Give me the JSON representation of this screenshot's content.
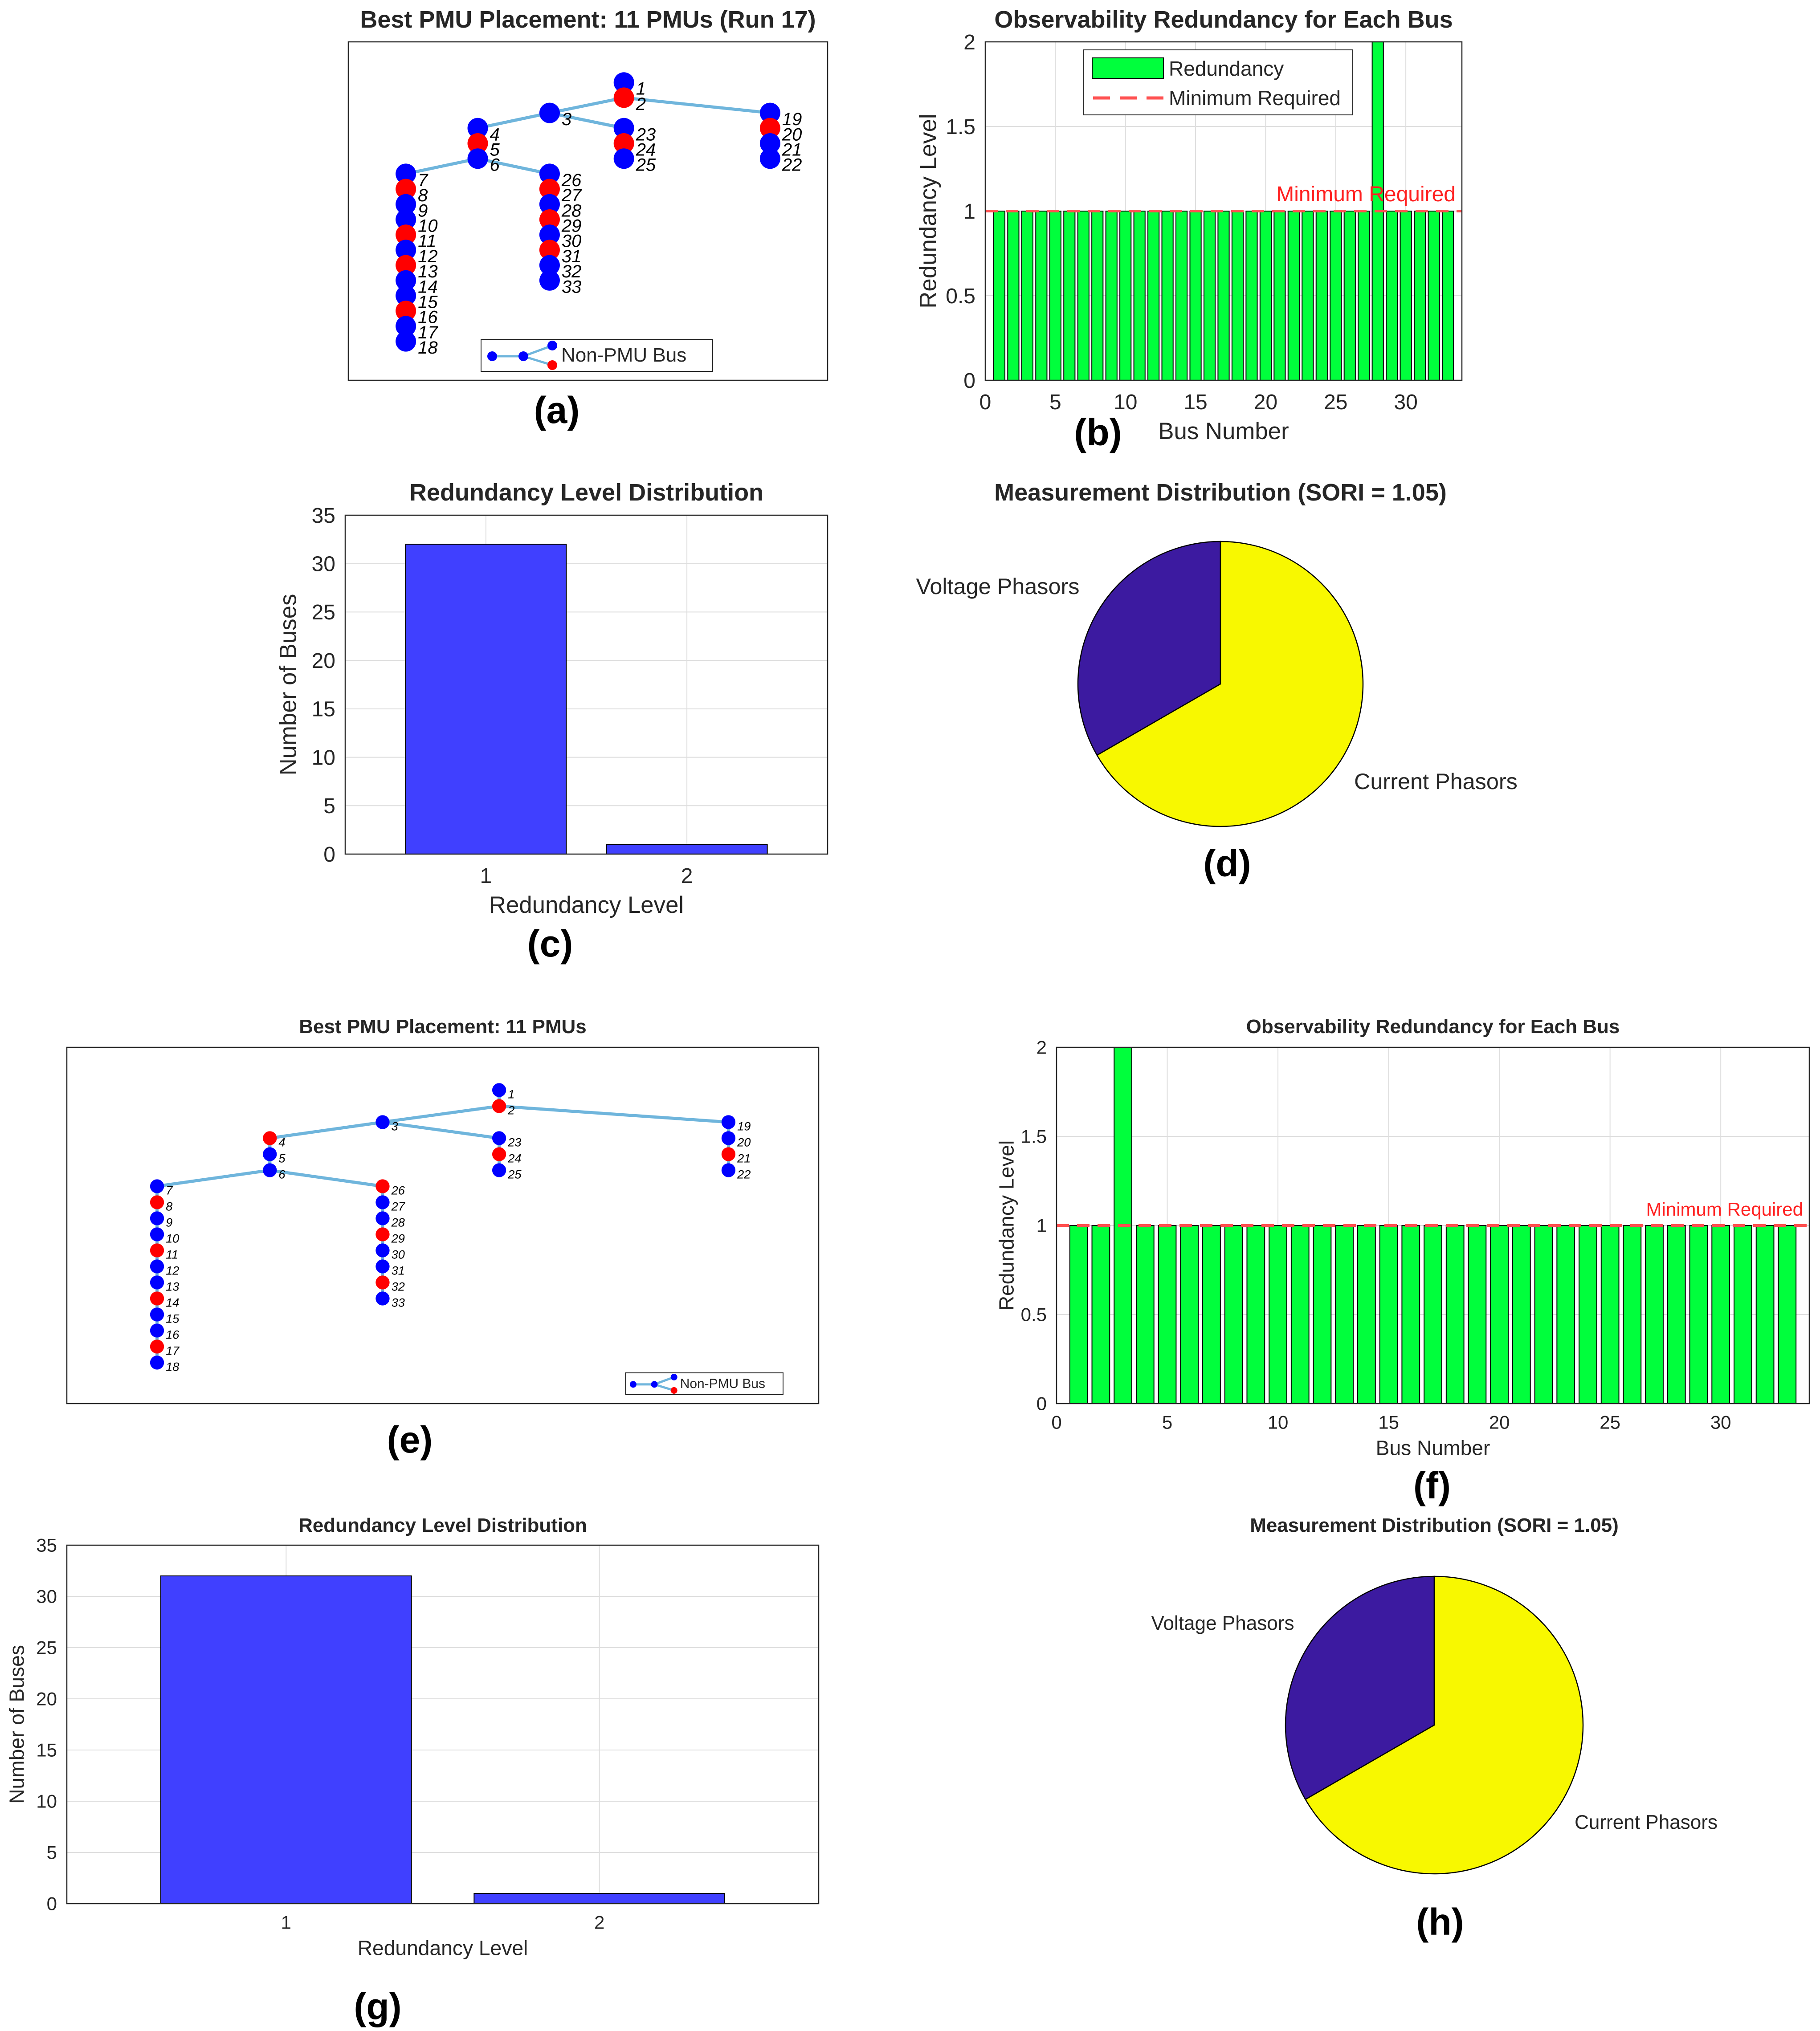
{
  "colors": {
    "pmu_bus": "#ff0000",
    "non_pmu_bus": "#0000ff",
    "line": "#6fb5dc",
    "green_bar": "#00ff3c",
    "blue_bar": "#4040ff",
    "min_line": "#ff5050",
    "pie_voltage": "#3c1aa0",
    "pie_current": "#f8f800"
  },
  "panels": [
    {
      "id": "a",
      "label": "(a)",
      "chart_data": {
        "type": "network",
        "title": "Best PMU Placement: 11 PMUs (Run 17)",
        "legend": {
          "entry": "Non-PMU Bus",
          "placement": "bottom"
        },
        "pmu_buses": [
          2,
          5,
          8,
          11,
          13,
          16,
          24,
          27,
          29,
          31,
          20
        ],
        "buses": [
          1,
          2,
          3,
          4,
          5,
          6,
          7,
          8,
          9,
          10,
          11,
          12,
          13,
          14,
          15,
          16,
          17,
          18,
          19,
          20,
          21,
          22,
          23,
          24,
          25,
          26,
          27,
          28,
          29,
          30,
          31,
          32,
          33
        ],
        "bus_labels": [
          "1",
          "2",
          "3",
          "4",
          "5",
          "6",
          "7",
          "8",
          "9",
          "10",
          "11",
          "12",
          "13",
          "14",
          "15",
          "16",
          "17",
          "18",
          "19",
          "20",
          "21",
          "22",
          "23",
          "24",
          "25",
          "26",
          "27",
          "28",
          "29",
          "30",
          "31",
          "32",
          "33"
        ]
      }
    },
    {
      "id": "b",
      "label": "(b)",
      "chart_data": {
        "type": "bar",
        "title": "Observability Redundancy for Each Bus",
        "xlabel": "Bus Number",
        "ylabel": "Redundancy Level",
        "x": [
          1,
          2,
          3,
          4,
          5,
          6,
          7,
          8,
          9,
          10,
          11,
          12,
          13,
          14,
          15,
          16,
          17,
          18,
          19,
          20,
          21,
          22,
          23,
          24,
          25,
          26,
          27,
          28,
          29,
          30,
          31,
          32,
          33
        ],
        "values": [
          1,
          1,
          1,
          1,
          1,
          1,
          1,
          1,
          1,
          1,
          1,
          1,
          1,
          1,
          1,
          1,
          1,
          1,
          1,
          1,
          1,
          1,
          1,
          1,
          1,
          1,
          1,
          2,
          1,
          1,
          1,
          1,
          1
        ],
        "xlim": [
          0,
          34
        ],
        "ylim": [
          0,
          2
        ],
        "xticks": [
          "0",
          "5",
          "10",
          "15",
          "20",
          "25",
          "30"
        ],
        "yticks": [
          "0",
          "0.5",
          "1",
          "1.5",
          "2"
        ],
        "xtick_values": [
          0,
          5,
          10,
          15,
          20,
          25,
          30
        ],
        "ytick_values": [
          0,
          0.5,
          1,
          1.5,
          2
        ],
        "min_required": 1,
        "min_label": "Minimum Required",
        "legend": {
          "entries": [
            "Redundancy",
            "Minimum Required"
          ],
          "placement": "top"
        },
        "grid": true
      }
    },
    {
      "id": "c",
      "label": "(c)",
      "chart_data": {
        "type": "bar",
        "title": "Redundancy Level Distribution",
        "xlabel": "Redundancy Level",
        "ylabel": "Number of Buses",
        "categories": [
          "1",
          "2"
        ],
        "values": [
          32,
          1
        ],
        "ylim": [
          0,
          35
        ],
        "yticks": [
          "0",
          "5",
          "10",
          "15",
          "20",
          "25",
          "30",
          "35"
        ],
        "ytick_values": [
          0,
          5,
          10,
          15,
          20,
          25,
          30,
          35
        ],
        "grid": true
      }
    },
    {
      "id": "d",
      "label": "(d)",
      "chart_data": {
        "type": "pie",
        "title": "Measurement Distribution (SORI = 1.05)",
        "labels": [
          "Voltage Phasors",
          "Current Phasors"
        ],
        "values": [
          11,
          22
        ]
      }
    },
    {
      "id": "e",
      "label": "(e)",
      "chart_data": {
        "type": "network",
        "title": "Best PMU Placement: 11 PMUs",
        "legend": {
          "entry": "Non-PMU Bus",
          "placement": "bottom-right"
        },
        "pmu_buses": [
          2,
          4,
          8,
          11,
          14,
          17,
          24,
          26,
          29,
          32,
          21
        ],
        "buses": [
          1,
          2,
          3,
          4,
          5,
          6,
          7,
          8,
          9,
          10,
          11,
          12,
          13,
          14,
          15,
          16,
          17,
          18,
          19,
          20,
          21,
          22,
          23,
          24,
          25,
          26,
          27,
          28,
          29,
          30,
          31,
          32,
          33
        ],
        "bus_labels": [
          "1",
          "2",
          "3",
          "4",
          "5",
          "6",
          "7",
          "8",
          "9",
          "10",
          "11",
          "12",
          "13",
          "14",
          "15",
          "16",
          "17",
          "18",
          "19",
          "20",
          "21",
          "22",
          "23",
          "24",
          "25",
          "26",
          "27",
          "28",
          "29",
          "30",
          "31",
          "32",
          "33"
        ]
      }
    },
    {
      "id": "f",
      "label": "(f)",
      "chart_data": {
        "type": "bar",
        "title": "Observability Redundancy for Each Bus",
        "xlabel": "Bus Number",
        "ylabel": "Redundancy Level",
        "x": [
          1,
          2,
          3,
          4,
          5,
          6,
          7,
          8,
          9,
          10,
          11,
          12,
          13,
          14,
          15,
          16,
          17,
          18,
          19,
          20,
          21,
          22,
          23,
          24,
          25,
          26,
          27,
          28,
          29,
          30,
          31,
          32,
          33
        ],
        "values": [
          1,
          1,
          2,
          1,
          1,
          1,
          1,
          1,
          1,
          1,
          1,
          1,
          1,
          1,
          1,
          1,
          1,
          1,
          1,
          1,
          1,
          1,
          1,
          1,
          1,
          1,
          1,
          1,
          1,
          1,
          1,
          1,
          1
        ],
        "xlim": [
          0,
          34
        ],
        "ylim": [
          0,
          2
        ],
        "xticks": [
          "0",
          "5",
          "10",
          "15",
          "20",
          "25",
          "30"
        ],
        "yticks": [
          "0",
          "0.5",
          "1",
          "1.5",
          "2"
        ],
        "xtick_values": [
          0,
          5,
          10,
          15,
          20,
          25,
          30
        ],
        "ytick_values": [
          0,
          0.5,
          1,
          1.5,
          2
        ],
        "min_required": 1,
        "min_label": "Minimum Required",
        "grid": true
      }
    },
    {
      "id": "g",
      "label": "(g)",
      "chart_data": {
        "type": "bar",
        "title": "Redundancy Level Distribution",
        "xlabel": "Redundancy Level",
        "ylabel": "Number of Buses",
        "categories": [
          "1",
          "2"
        ],
        "values": [
          32,
          1
        ],
        "ylim": [
          0,
          35
        ],
        "yticks": [
          "0",
          "5",
          "10",
          "15",
          "20",
          "25",
          "30",
          "35"
        ],
        "ytick_values": [
          0,
          5,
          10,
          15,
          20,
          25,
          30,
          35
        ],
        "grid": true
      }
    },
    {
      "id": "h",
      "label": "(h)",
      "chart_data": {
        "type": "pie",
        "title": "Measurement Distribution (SORI = 1.05)",
        "labels": [
          "Voltage Phasors",
          "Current Phasors"
        ],
        "values": [
          11,
          22
        ]
      }
    }
  ]
}
